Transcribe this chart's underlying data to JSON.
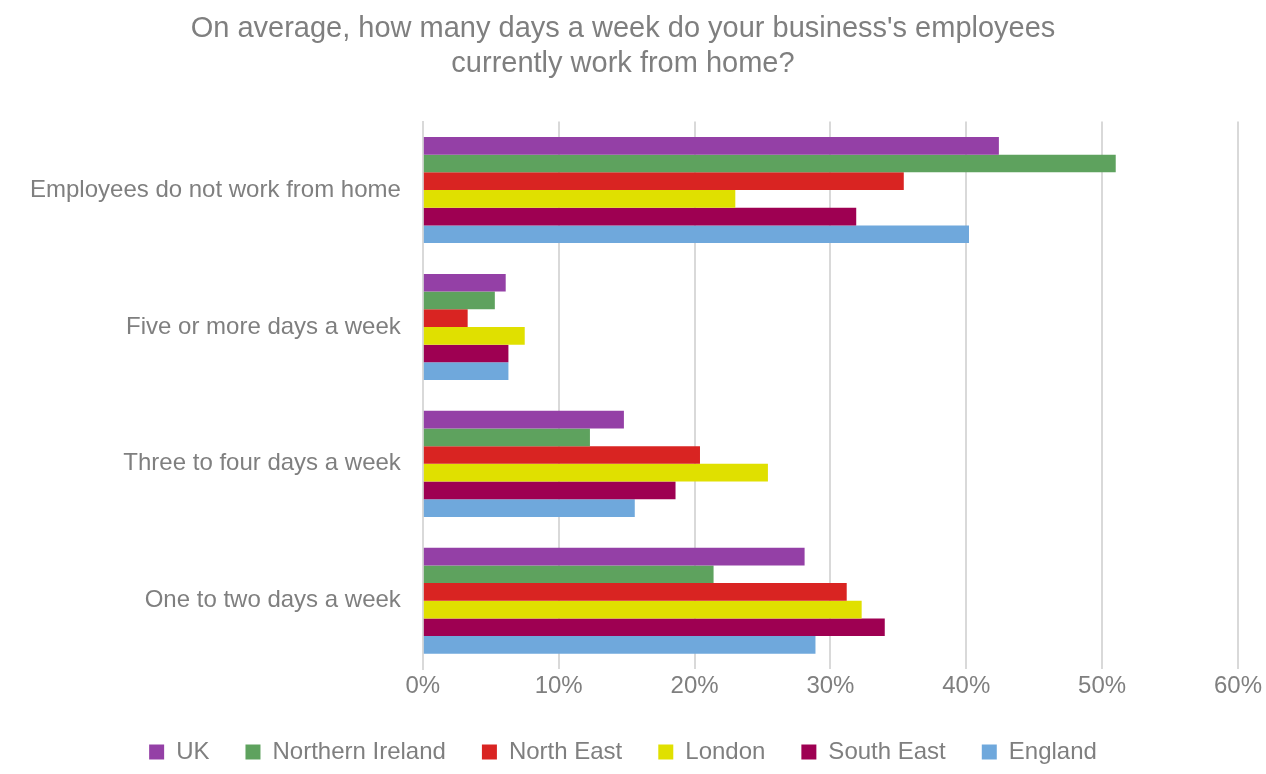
{
  "chart_data": {
    "type": "bar",
    "orientation": "horizontal",
    "title": "On average, how many days a week do your business's employees currently work from home?",
    "categories": [
      "Employees do not work from home",
      "Five or more days a week",
      "Three to four days a week",
      "One to two days a week"
    ],
    "series": [
      {
        "name": "UK",
        "color": "#9440a6",
        "values": [
          42.4,
          6.1,
          14.8,
          28.1
        ]
      },
      {
        "name": "Northern Ireland",
        "color": "#5ea25e",
        "values": [
          51.0,
          5.3,
          12.3,
          21.4
        ]
      },
      {
        "name": "North East",
        "color": "#d92422",
        "values": [
          35.4,
          3.3,
          20.4,
          31.2
        ]
      },
      {
        "name": "London",
        "color": "#e0e000",
        "values": [
          23.0,
          7.5,
          25.4,
          32.3
        ]
      },
      {
        "name": "South East",
        "color": "#9e0052",
        "values": [
          31.9,
          6.3,
          18.6,
          34.0
        ]
      },
      {
        "name": "England",
        "color": "#6fa8dc",
        "values": [
          40.2,
          6.3,
          15.6,
          28.9
        ]
      }
    ],
    "xlim": [
      0,
      60
    ],
    "xticks": [
      {
        "value": 0,
        "label": "0%"
      },
      {
        "value": 10,
        "label": "10%"
      },
      {
        "value": 20,
        "label": "20%"
      },
      {
        "value": 30,
        "label": "30%"
      },
      {
        "value": 40,
        "label": "40%"
      },
      {
        "value": 50,
        "label": "50%"
      },
      {
        "value": 60,
        "label": "60%"
      }
    ],
    "grid": "x",
    "legend": "bottom"
  }
}
